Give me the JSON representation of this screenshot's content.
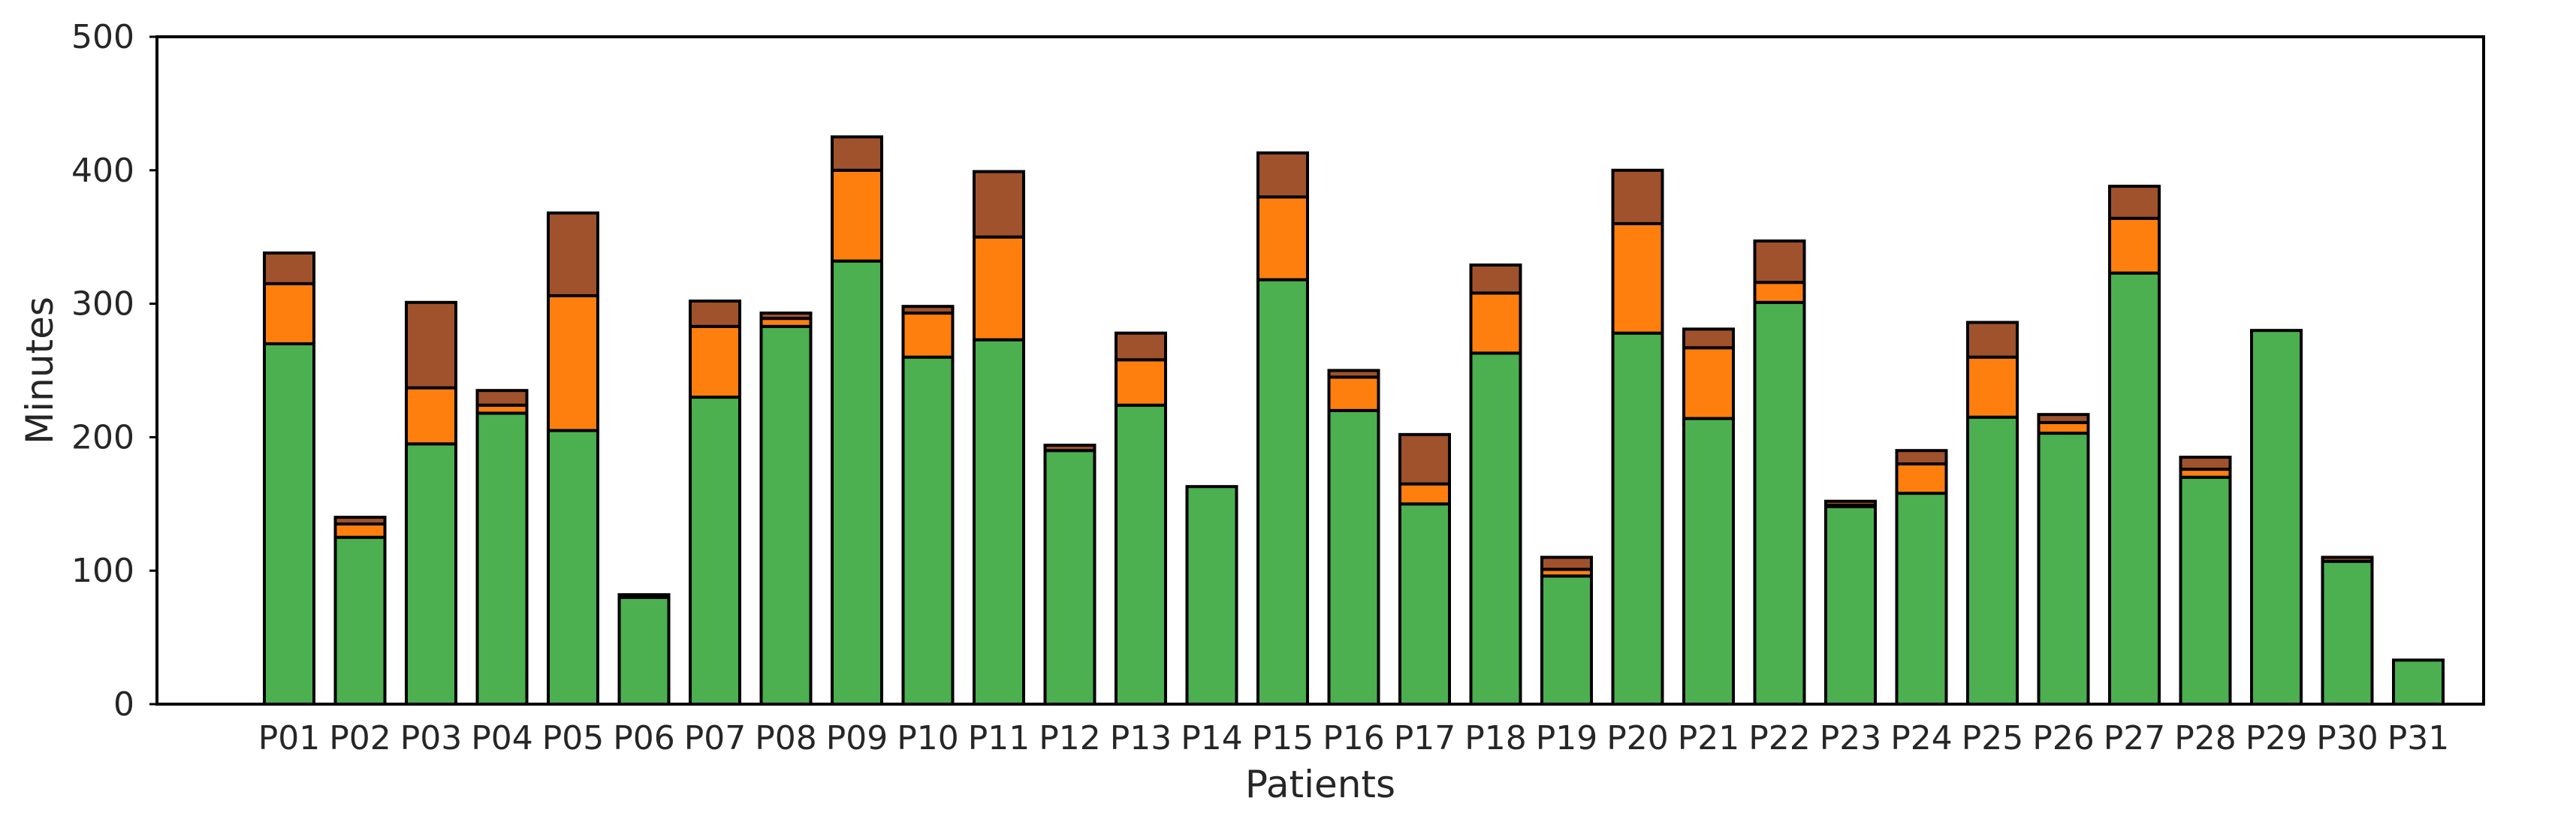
{
  "chart_data": {
    "type": "bar",
    "stacked": true,
    "xlabel": "Patients",
    "ylabel": "Minutes",
    "ylim": [
      0,
      500
    ],
    "yticks": [
      0,
      100,
      200,
      300,
      400,
      500
    ],
    "grid": false,
    "legend": "none",
    "categories": [
      "P01",
      "P02",
      "P03",
      "P04",
      "P05",
      "P06",
      "P07",
      "P08",
      "P09",
      "P10",
      "P11",
      "P12",
      "P13",
      "P14",
      "P15",
      "P16",
      "P17",
      "P18",
      "P19",
      "P20",
      "P21",
      "P22",
      "P23",
      "P24",
      "P25",
      "P26",
      "P27",
      "P28",
      "P29",
      "P30",
      "P31"
    ],
    "series": [
      {
        "color": "#4caf50",
        "values": [
          270,
          125,
          195,
          218,
          205,
          80,
          230,
          283,
          332,
          260,
          273,
          190,
          224,
          163,
          318,
          220,
          150,
          263,
          96,
          278,
          214,
          301,
          148,
          158,
          215,
          203,
          323,
          170,
          280,
          107,
          33
        ]
      },
      {
        "color": "#ff7f0e",
        "values": [
          45,
          10,
          42,
          6,
          101,
          0,
          53,
          6,
          68,
          33,
          77,
          0,
          34,
          0,
          62,
          25,
          15,
          45,
          5,
          82,
          53,
          15,
          1,
          22,
          45,
          8,
          41,
          6,
          0,
          0,
          0
        ]
      },
      {
        "color": "#a0522d",
        "values": [
          23,
          5,
          64,
          11,
          62,
          2,
          19,
          4,
          25,
          5,
          49,
          4,
          20,
          0,
          33,
          5,
          37,
          21,
          9,
          40,
          14,
          31,
          3,
          10,
          26,
          6,
          24,
          9,
          0,
          3,
          0
        ]
      }
    ]
  }
}
